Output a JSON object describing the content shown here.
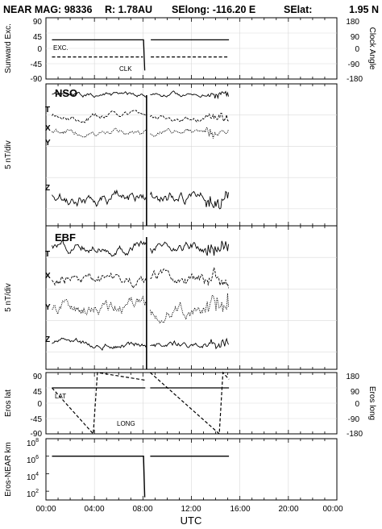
{
  "header": {
    "mission": "NEAR MAG: 98336",
    "radius": "R: 1.78AU",
    "selong": "SElong: -116.20 E",
    "selat": "SElat:",
    "selat_value": "1.95 N"
  },
  "x_axis": {
    "label": "UTC",
    "tick_labels": [
      "00:00",
      "04:00",
      "08:00",
      "12:00",
      "16:00",
      "20:00",
      "00:00"
    ],
    "range_hours": [
      0,
      24
    ]
  },
  "chart_data": [
    {
      "type": "line",
      "panel": "sunward",
      "ylabel": "Sunward Exc.",
      "ylabel_right": "Clock Angle",
      "ylim": [
        -90,
        90
      ],
      "ylim_right": [
        -180,
        180
      ],
      "yticks": [
        "90",
        "45",
        "0",
        "-45",
        "-90"
      ],
      "yticks_right": [
        "180",
        "90",
        "0",
        "-90",
        "-180"
      ],
      "annotations": [
        "EXC.",
        "CLK"
      ],
      "gap_hours": [
        8.15,
        8.6
      ],
      "series": [
        {
          "name": "EXC.",
          "x": [
            0.5,
            8.05,
            8.15
          ],
          "y": [
            25,
            25,
            -65
          ]
        },
        {
          "name": "CLK",
          "x": [
            0.5,
            8.0
          ],
          "y": [
            -25,
            -25
          ],
          "style": "dashed"
        },
        {
          "name": "EXC.",
          "x": [
            8.65,
            15.1
          ],
          "y": [
            25,
            25
          ]
        },
        {
          "name": "CLK",
          "x": [
            8.65,
            15.1
          ],
          "y": [
            -25,
            -25
          ],
          "style": "dashed"
        }
      ]
    },
    {
      "type": "line",
      "panel": "nso",
      "title": "NSO",
      "ylabel": "5 nT/div",
      "series": [
        {
          "name": "T",
          "level": 0.92
        },
        {
          "name": "X",
          "level": 0.77
        },
        {
          "name": "Y",
          "level": 0.66
        },
        {
          "name": "Z",
          "level": 0.21
        }
      ],
      "spike_hours": 8.3,
      "gap_hours": [
        8.35,
        8.6
      ],
      "data_end_hours": 15.1
    },
    {
      "type": "line",
      "panel": "ebf",
      "title": "EBF",
      "ylabel": "5 nT/div",
      "series": [
        {
          "name": "T",
          "level": 0.86
        },
        {
          "name": "X",
          "level": 0.62
        },
        {
          "name": "Y",
          "level": 0.42
        },
        {
          "name": "Z",
          "level": 0.18
        }
      ],
      "spike_hours": 8.3,
      "gap_hours": [
        8.35,
        8.6
      ],
      "data_end_hours": 15.1
    },
    {
      "type": "line",
      "panel": "eros_angles",
      "ylabel": "Eros lat",
      "ylabel_right": "Eros long",
      "ylim": [
        -90,
        90
      ],
      "ylim_right": [
        -180,
        180
      ],
      "yticks": [
        "90",
        "45",
        "0",
        "-45",
        "-90"
      ],
      "yticks_right": [
        "180",
        "90",
        "0",
        "-90",
        "-180"
      ],
      "annotations": [
        "LAT",
        "LONG"
      ],
      "series": [
        {
          "name": "LAT",
          "x": [
            0.5,
            8.2
          ],
          "y": [
            45,
            45
          ]
        },
        {
          "name": "LAT",
          "x": [
            8.6,
            15.1
          ],
          "y": [
            45,
            45
          ]
        },
        {
          "name": "LONG",
          "x": [
            0.5,
            3.9,
            4.25,
            8.2
          ],
          "y_right": [
            90,
            -180,
            180,
            135
          ],
          "style": "dashed"
        },
        {
          "name": "LONG",
          "x": [
            8.6,
            14.3,
            14.6,
            15.1
          ],
          "y_right": [
            180,
            -180,
            180,
            140
          ],
          "style": "dashed"
        }
      ]
    },
    {
      "type": "line",
      "panel": "range",
      "ylabel": "Eros-NEAR km",
      "yscale": "log",
      "ylim": [
        10,
        100000000
      ],
      "yticks": [
        {
          "base": "10",
          "exp": "8"
        },
        {
          "base": "10",
          "exp": "6"
        },
        {
          "base": "10",
          "exp": "4"
        },
        {
          "base": "10",
          "exp": "2"
        }
      ],
      "series": [
        {
          "name": "range",
          "x": [
            0.5,
            8.05,
            8.15
          ],
          "y": [
            1000000,
            1000000,
            20
          ]
        },
        {
          "name": "range",
          "x": [
            8.6,
            15.1
          ],
          "y": [
            1000000,
            1000000
          ]
        }
      ]
    }
  ]
}
